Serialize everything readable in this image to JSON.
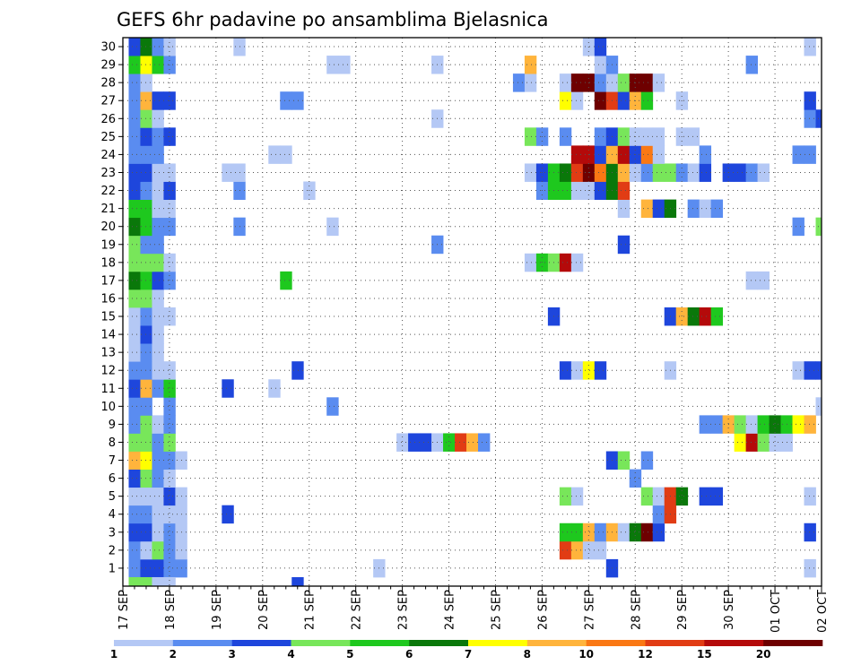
{
  "chart_data": {
    "type": "heatmap",
    "title": "GEFS 6hr padavine po ansamblima Bjelasnica",
    "xlabel": "",
    "ylabel": "",
    "y_tick_labels": [
      "1",
      "2",
      "3",
      "4",
      "5",
      "6",
      "7",
      "8",
      "9",
      "10",
      "11",
      "12",
      "13",
      "14",
      "15",
      "16",
      "17",
      "18",
      "19",
      "20",
      "21",
      "22",
      "23",
      "24",
      "25",
      "26",
      "27",
      "28",
      "29",
      "30"
    ],
    "x_tick_labels": [
      "17 SEP",
      "18 SEP",
      "19 SEP",
      "20 SEP",
      "21 SEP",
      "22 SEP",
      "23 SEP",
      "24 SEP",
      "25 SEP",
      "26 SEP",
      "27 SEP",
      "28 SEP",
      "29 SEP",
      "30 SEP",
      "01 OCT",
      "02 OCT"
    ],
    "xlim": [
      "17 SEP 00Z",
      "02 OCT 00Z"
    ],
    "ylim": [
      0,
      30
    ],
    "time_step_hours": 6,
    "grid": "dotted",
    "colorbar": {
      "position": "bottom",
      "labels": [
        "1",
        "2",
        "3",
        "4",
        "5",
        "6",
        "7",
        "8",
        "10",
        "12",
        "15",
        "20"
      ],
      "bounds": [
        1,
        2,
        3,
        4,
        5,
        6,
        7,
        8,
        10,
        12,
        15,
        20
      ],
      "colors": [
        "#b4c8f5",
        "#5a8cf0",
        "#1e46dc",
        "#78e65a",
        "#1ec81e",
        "#0a780a",
        "#ffff00",
        "#ffb43c",
        "#fa7814",
        "#e13c14",
        "#b40a0a",
        "#6e0000"
      ]
    },
    "cells": [
      [
        1,
        1,
        2
      ],
      [
        1,
        2,
        3
      ],
      [
        1,
        3,
        3
      ],
      [
        1,
        4,
        2
      ],
      [
        1,
        5,
        2
      ],
      [
        1,
        22,
        1
      ],
      [
        1,
        42,
        3
      ],
      [
        1,
        59,
        1
      ],
      [
        2,
        1,
        2
      ],
      [
        2,
        2,
        1
      ],
      [
        2,
        3,
        4
      ],
      [
        2,
        4,
        2
      ],
      [
        2,
        5,
        1
      ],
      [
        2,
        38,
        10
      ],
      [
        2,
        39,
        8
      ],
      [
        2,
        40,
        1
      ],
      [
        2,
        41,
        1
      ],
      [
        3,
        1,
        3
      ],
      [
        3,
        2,
        3
      ],
      [
        3,
        3,
        1
      ],
      [
        3,
        4,
        2
      ],
      [
        3,
        5,
        1
      ],
      [
        3,
        38,
        5
      ],
      [
        3,
        39,
        5
      ],
      [
        3,
        40,
        8
      ],
      [
        3,
        41,
        2
      ],
      [
        3,
        42,
        8
      ],
      [
        3,
        43,
        1
      ],
      [
        3,
        44,
        6
      ],
      [
        3,
        45,
        12
      ],
      [
        3,
        46,
        3
      ],
      [
        3,
        59,
        3
      ],
      [
        4,
        1,
        2
      ],
      [
        4,
        2,
        2
      ],
      [
        4,
        3,
        1
      ],
      [
        4,
        4,
        1
      ],
      [
        4,
        5,
        1
      ],
      [
        4,
        9,
        3
      ],
      [
        4,
        46,
        2
      ],
      [
        4,
        47,
        10
      ],
      [
        5,
        1,
        1
      ],
      [
        5,
        2,
        1
      ],
      [
        5,
        3,
        1
      ],
      [
        5,
        4,
        3
      ],
      [
        5,
        5,
        1
      ],
      [
        5,
        38,
        4
      ],
      [
        5,
        39,
        1
      ],
      [
        5,
        45,
        4
      ],
      [
        5,
        46,
        1
      ],
      [
        5,
        47,
        10
      ],
      [
        5,
        48,
        6
      ],
      [
        5,
        50,
        3
      ],
      [
        5,
        51,
        3
      ],
      [
        5,
        59,
        1
      ],
      [
        6,
        1,
        3
      ],
      [
        6,
        2,
        4
      ],
      [
        6,
        3,
        2
      ],
      [
        6,
        4,
        1
      ],
      [
        6,
        44,
        2
      ],
      [
        7,
        1,
        8
      ],
      [
        7,
        2,
        7
      ],
      [
        7,
        3,
        2
      ],
      [
        7,
        4,
        2
      ],
      [
        7,
        5,
        1
      ],
      [
        7,
        42,
        3
      ],
      [
        7,
        43,
        4
      ],
      [
        7,
        45,
        2
      ],
      [
        8,
        1,
        4
      ],
      [
        8,
        2,
        4
      ],
      [
        8,
        3,
        2
      ],
      [
        8,
        4,
        4
      ],
      [
        8,
        24,
        1
      ],
      [
        8,
        25,
        3
      ],
      [
        8,
        26,
        3
      ],
      [
        8,
        27,
        1
      ],
      [
        8,
        28,
        5
      ],
      [
        8,
        29,
        10
      ],
      [
        8,
        30,
        8
      ],
      [
        8,
        31,
        2
      ],
      [
        8,
        53,
        7
      ],
      [
        8,
        54,
        11
      ],
      [
        8,
        55,
        4
      ],
      [
        8,
        56,
        1
      ],
      [
        8,
        57,
        1
      ],
      [
        9,
        1,
        2
      ],
      [
        9,
        2,
        4
      ],
      [
        9,
        3,
        1
      ],
      [
        9,
        4,
        2
      ],
      [
        9,
        50,
        2
      ],
      [
        9,
        51,
        2
      ],
      [
        9,
        52,
        8
      ],
      [
        9,
        53,
        4
      ],
      [
        9,
        54,
        1
      ],
      [
        9,
        55,
        5
      ],
      [
        9,
        56,
        6
      ],
      [
        9,
        57,
        5
      ],
      [
        9,
        58,
        7
      ],
      [
        9,
        59,
        8
      ],
      [
        10,
        1,
        2
      ],
      [
        10,
        2,
        2
      ],
      [
        10,
        4,
        2
      ],
      [
        10,
        18,
        2
      ],
      [
        10,
        60,
        1
      ],
      [
        11,
        1,
        3
      ],
      [
        11,
        2,
        8
      ],
      [
        11,
        3,
        2
      ],
      [
        11,
        4,
        5
      ],
      [
        11,
        9,
        3
      ],
      [
        11,
        13,
        1
      ],
      [
        12,
        1,
        2
      ],
      [
        12,
        2,
        2
      ],
      [
        12,
        3,
        1
      ],
      [
        12,
        4,
        1
      ],
      [
        12,
        15,
        3
      ],
      [
        12,
        38,
        3
      ],
      [
        12,
        39,
        1
      ],
      [
        12,
        40,
        7
      ],
      [
        12,
        41,
        3
      ],
      [
        12,
        47,
        1
      ],
      [
        12,
        58,
        1
      ],
      [
        12,
        59,
        3
      ],
      [
        12,
        60,
        3
      ],
      [
        13,
        1,
        1
      ],
      [
        13,
        2,
        2
      ],
      [
        13,
        3,
        1
      ],
      [
        14,
        1,
        1
      ],
      [
        14,
        2,
        3
      ],
      [
        14,
        3,
        1
      ],
      [
        15,
        1,
        1
      ],
      [
        15,
        2,
        2
      ],
      [
        15,
        3,
        1
      ],
      [
        15,
        4,
        1
      ],
      [
        15,
        37,
        3
      ],
      [
        15,
        47,
        3
      ],
      [
        15,
        48,
        8
      ],
      [
        15,
        49,
        6
      ],
      [
        15,
        50,
        11
      ],
      [
        15,
        51,
        5
      ],
      [
        16,
        1,
        4
      ],
      [
        16,
        2,
        4
      ],
      [
        16,
        3,
        1
      ],
      [
        17,
        1,
        6
      ],
      [
        17,
        2,
        5
      ],
      [
        17,
        3,
        3
      ],
      [
        17,
        4,
        2
      ],
      [
        17,
        14,
        5
      ],
      [
        17,
        54,
        1
      ],
      [
        17,
        55,
        1
      ],
      [
        18,
        1,
        4
      ],
      [
        18,
        2,
        4
      ],
      [
        18,
        3,
        4
      ],
      [
        18,
        4,
        1
      ],
      [
        18,
        35,
        1
      ],
      [
        18,
        36,
        5
      ],
      [
        18,
        37,
        4
      ],
      [
        18,
        38,
        11
      ],
      [
        18,
        39,
        1
      ],
      [
        19,
        1,
        4
      ],
      [
        19,
        2,
        2
      ],
      [
        19,
        3,
        2
      ],
      [
        19,
        27,
        2
      ],
      [
        19,
        43,
        3
      ],
      [
        20,
        1,
        6
      ],
      [
        20,
        2,
        5
      ],
      [
        20,
        3,
        2
      ],
      [
        20,
        4,
        2
      ],
      [
        20,
        10,
        2
      ],
      [
        20,
        18,
        1
      ],
      [
        20,
        58,
        2
      ],
      [
        20,
        60,
        4
      ],
      [
        21,
        1,
        5
      ],
      [
        21,
        2,
        5
      ],
      [
        21,
        3,
        1
      ],
      [
        21,
        4,
        1
      ],
      [
        21,
        43,
        1
      ],
      [
        21,
        45,
        8
      ],
      [
        21,
        46,
        3
      ],
      [
        21,
        47,
        6
      ],
      [
        21,
        49,
        2
      ],
      [
        21,
        50,
        1
      ],
      [
        21,
        51,
        2
      ],
      [
        22,
        1,
        3
      ],
      [
        22,
        2,
        2
      ],
      [
        22,
        3,
        1
      ],
      [
        22,
        4,
        3
      ],
      [
        22,
        10,
        2
      ],
      [
        22,
        16,
        1
      ],
      [
        22,
        36,
        2
      ],
      [
        22,
        37,
        5
      ],
      [
        22,
        38,
        5
      ],
      [
        22,
        39,
        1
      ],
      [
        22,
        40,
        1
      ],
      [
        22,
        41,
        3
      ],
      [
        22,
        42,
        6
      ],
      [
        22,
        43,
        10
      ],
      [
        23,
        1,
        3
      ],
      [
        23,
        2,
        3
      ],
      [
        23,
        3,
        1
      ],
      [
        23,
        4,
        1
      ],
      [
        23,
        9,
        1
      ],
      [
        23,
        10,
        1
      ],
      [
        23,
        35,
        1
      ],
      [
        23,
        36,
        3
      ],
      [
        23,
        37,
        5
      ],
      [
        23,
        38,
        6
      ],
      [
        23,
        39,
        10
      ],
      [
        23,
        40,
        12
      ],
      [
        23,
        41,
        9
      ],
      [
        23,
        42,
        6
      ],
      [
        23,
        43,
        8
      ],
      [
        23,
        44,
        1
      ],
      [
        23,
        45,
        2
      ],
      [
        23,
        46,
        4
      ],
      [
        23,
        47,
        4
      ],
      [
        23,
        48,
        2
      ],
      [
        23,
        49,
        1
      ],
      [
        23,
        50,
        3
      ],
      [
        23,
        52,
        3
      ],
      [
        23,
        53,
        3
      ],
      [
        23,
        54,
        2
      ],
      [
        23,
        55,
        1
      ],
      [
        24,
        1,
        2
      ],
      [
        24,
        2,
        2
      ],
      [
        24,
        3,
        2
      ],
      [
        24,
        13,
        1
      ],
      [
        24,
        14,
        1
      ],
      [
        24,
        39,
        11
      ],
      [
        24,
        40,
        11
      ],
      [
        24,
        41,
        3
      ],
      [
        24,
        42,
        8
      ],
      [
        24,
        43,
        11
      ],
      [
        24,
        44,
        3
      ],
      [
        24,
        45,
        9
      ],
      [
        24,
        46,
        1
      ],
      [
        24,
        50,
        2
      ],
      [
        24,
        58,
        2
      ],
      [
        24,
        59,
        2
      ],
      [
        25,
        1,
        2
      ],
      [
        25,
        2,
        3
      ],
      [
        25,
        3,
        2
      ],
      [
        25,
        4,
        3
      ],
      [
        25,
        35,
        4
      ],
      [
        25,
        36,
        2
      ],
      [
        25,
        38,
        2
      ],
      [
        25,
        41,
        2
      ],
      [
        25,
        42,
        3
      ],
      [
        25,
        43,
        4
      ],
      [
        25,
        44,
        1
      ],
      [
        25,
        45,
        1
      ],
      [
        25,
        46,
        1
      ],
      [
        25,
        48,
        1
      ],
      [
        25,
        49,
        1
      ],
      [
        26,
        1,
        2
      ],
      [
        26,
        2,
        4
      ],
      [
        26,
        3,
        1
      ],
      [
        26,
        27,
        1
      ],
      [
        26,
        59,
        2
      ],
      [
        26,
        60,
        3
      ],
      [
        27,
        1,
        2
      ],
      [
        27,
        2,
        8
      ],
      [
        27,
        3,
        3
      ],
      [
        27,
        4,
        3
      ],
      [
        27,
        14,
        2
      ],
      [
        27,
        15,
        2
      ],
      [
        27,
        38,
        7
      ],
      [
        27,
        39,
        1
      ],
      [
        27,
        41,
        12
      ],
      [
        27,
        42,
        10
      ],
      [
        27,
        43,
        3
      ],
      [
        27,
        44,
        8
      ],
      [
        27,
        45,
        5
      ],
      [
        27,
        48,
        1
      ],
      [
        27,
        59,
        3
      ],
      [
        28,
        1,
        2
      ],
      [
        28,
        2,
        1
      ],
      [
        28,
        34,
        2
      ],
      [
        28,
        35,
        1
      ],
      [
        28,
        38,
        1
      ],
      [
        28,
        39,
        12
      ],
      [
        28,
        40,
        12
      ],
      [
        28,
        41,
        2
      ],
      [
        28,
        42,
        1
      ],
      [
        28,
        43,
        4
      ],
      [
        28,
        44,
        12
      ],
      [
        28,
        45,
        12
      ],
      [
        28,
        46,
        1
      ],
      [
        29,
        1,
        5
      ],
      [
        29,
        2,
        7
      ],
      [
        29,
        3,
        5
      ],
      [
        29,
        4,
        2
      ],
      [
        29,
        18,
        1
      ],
      [
        29,
        19,
        1
      ],
      [
        29,
        27,
        1
      ],
      [
        29,
        35,
        8
      ],
      [
        29,
        41,
        1
      ],
      [
        29,
        42,
        2
      ],
      [
        29,
        54,
        2
      ],
      [
        30,
        1,
        3
      ],
      [
        30,
        2,
        6
      ],
      [
        30,
        3,
        2
      ],
      [
        30,
        4,
        1
      ],
      [
        30,
        10,
        1
      ],
      [
        30,
        40,
        1
      ],
      [
        30,
        41,
        3
      ],
      [
        30,
        59,
        1
      ],
      [
        0,
        1,
        4
      ],
      [
        0,
        2,
        4
      ],
      [
        0,
        3,
        1
      ],
      [
        0,
        4,
        1
      ],
      [
        0,
        15,
        3
      ]
    ]
  }
}
